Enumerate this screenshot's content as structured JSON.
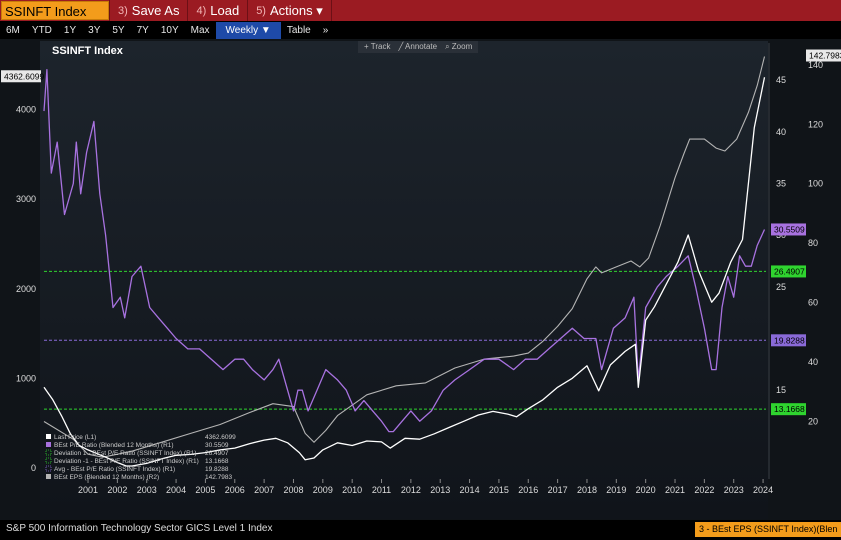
{
  "topbar": {
    "ticker": "SSINFT Index",
    "save_num": "3)",
    "save_label": "Save As",
    "load_num": "4)",
    "load_label": "Load",
    "actions_num": "5)",
    "actions_label": "Actions ▾"
  },
  "ranges": [
    "6M",
    "YTD",
    "1Y",
    "3Y",
    "5Y",
    "7Y",
    "10Y",
    "Max"
  ],
  "weekly_label": "Weekly ▼",
  "table_label": "Table",
  "more_label": "»",
  "tools": {
    "track": "+ Track",
    "annotate": "╱ Annotate",
    "zoom": "⌕ Zoom"
  },
  "status": {
    "left": "S&P 500 Information Technology Sector GICS Level 1 Index",
    "right": "3 - BEst EPS (SSINFT Index)(Blen"
  },
  "chart_data": {
    "type": "line",
    "title": "SSINFT Index",
    "x_ticks": [
      "2001",
      "2002",
      "2003",
      "2004",
      "2005",
      "2006",
      "2007",
      "2008",
      "2009",
      "2010",
      "2011",
      "2012",
      "2013",
      "2014",
      "2015",
      "2016",
      "2017",
      "2018",
      "2019",
      "2020",
      "2021",
      "2022",
      "2023",
      "2024"
    ],
    "x_range": [
      2000.0,
      2024.6
    ],
    "left_axis_ticks": [
      0,
      1000,
      2000,
      3000,
      4000
    ],
    "left_axis_range": [
      -80,
      4700
    ],
    "right_axis_pe_ticks": [
      15,
      20,
      25,
      30,
      35,
      40,
      45
    ],
    "right_axis_pe_range": [
      6.8,
      48.2
    ],
    "right_axis_eps_ticks": [
      20,
      40,
      60,
      80,
      100,
      120,
      140
    ],
    "right_axis_eps_range": [
      2,
      146
    ],
    "colors": {
      "price": "#ffffff",
      "pe": "#a872e0",
      "eps": "#b4b4b4",
      "dev_lines": "#2fd42f",
      "avg_line": "#8a6ad8"
    },
    "reference_lines": [
      {
        "name": "Deviation 1 - BEst P/E Ratio (SSINFT Index) (R1)",
        "value": 26.4907,
        "label": "26.4907"
      },
      {
        "name": "Deviation -1 - BEst P/E Ratio (SSINFT Index) (R1)",
        "value": 13.1668,
        "label": "13.1668"
      },
      {
        "name": "Avg - BEst P/E Ratio (SSINFT Index) (R1)",
        "value": 19.8288,
        "label": "19.8288"
      }
    ],
    "series": [
      {
        "name": "Last Price (L1)",
        "axis": "left",
        "last_label": "4362.6099",
        "x": [
          2000.0,
          2000.3,
          2000.6,
          2000.9,
          2001.2,
          2001.5,
          2001.8,
          2002.1,
          2002.5,
          2002.8,
          2003.0,
          2003.5,
          2004.0,
          2004.5,
          2005.0,
          2005.5,
          2006.0,
          2006.5,
          2007.0,
          2007.5,
          2007.9,
          2008.3,
          2008.7,
          2008.9,
          2009.2,
          2009.5,
          2010.0,
          2010.5,
          2011.0,
          2011.5,
          2011.8,
          2012.3,
          2012.8,
          2013.3,
          2013.8,
          2014.3,
          2014.8,
          2015.3,
          2015.8,
          2016.1,
          2016.5,
          2017.0,
          2017.5,
          2018.0,
          2018.5,
          2018.9,
          2019.3,
          2019.8,
          2020.15,
          2020.25,
          2020.5,
          2020.8,
          2021.2,
          2021.6,
          2021.95,
          2022.3,
          2022.75,
          2023.0,
          2023.4,
          2023.8,
          2024.2,
          2024.55
        ],
        "y": [
          900,
          760,
          580,
          380,
          250,
          200,
          160,
          120,
          60,
          20,
          20,
          50,
          100,
          140,
          150,
          170,
          200,
          220,
          270,
          310,
          330,
          280,
          170,
          90,
          110,
          200,
          280,
          250,
          300,
          290,
          220,
          330,
          320,
          380,
          450,
          520,
          590,
          630,
          600,
          570,
          660,
          760,
          900,
          1000,
          1140,
          860,
          1150,
          1300,
          1380,
          900,
          1650,
          1800,
          2050,
          2300,
          2600,
          2200,
          1850,
          1950,
          2300,
          2550,
          3800,
          4362
        ]
      },
      {
        "name": "BEst P/E Ratio (Blended 12 Months) (R1)",
        "axis": "right_pe",
        "last_label": "30.5509",
        "x": [
          2000.0,
          2000.1,
          2000.25,
          2000.45,
          2000.7,
          2001.0,
          2001.1,
          2001.25,
          2001.45,
          2001.7,
          2001.9,
          2002.1,
          2002.35,
          2002.6,
          2002.75,
          2003.0,
          2003.3,
          2003.6,
          2003.9,
          2004.2,
          2004.5,
          2004.9,
          2005.3,
          2005.7,
          2006.1,
          2006.5,
          2006.8,
          2007.1,
          2007.5,
          2007.8,
          2008.0,
          2008.3,
          2008.5,
          2008.65,
          2008.8,
          2009.0,
          2009.3,
          2009.6,
          2010.0,
          2010.3,
          2010.6,
          2010.9,
          2011.2,
          2011.5,
          2011.75,
          2011.9,
          2012.2,
          2012.5,
          2012.8,
          2013.2,
          2013.6,
          2014.0,
          2014.5,
          2015.0,
          2015.5,
          2016.0,
          2016.4,
          2016.8,
          2017.2,
          2017.6,
          2018.0,
          2018.4,
          2018.8,
          2019.0,
          2019.4,
          2019.8,
          2020.1,
          2020.25,
          2020.5,
          2020.9,
          2021.2,
          2021.6,
          2021.95,
          2022.2,
          2022.5,
          2022.75,
          2022.9,
          2023.1,
          2023.3,
          2023.5,
          2023.7,
          2023.9,
          2024.1,
          2024.3,
          2024.55
        ],
        "y": [
          42,
          46,
          36,
          39,
          32,
          35,
          39,
          34,
          38,
          41,
          34,
          30,
          23,
          24,
          22,
          26,
          27,
          23,
          22,
          21,
          20,
          19,
          19,
          18,
          17,
          18,
          18,
          17,
          16,
          17,
          18,
          15,
          13,
          15,
          15,
          13,
          15,
          17,
          16,
          15,
          13,
          14,
          13,
          12,
          11,
          11,
          12,
          13,
          12,
          13,
          15,
          16,
          17,
          18,
          18,
          17,
          18,
          18,
          19,
          20,
          21,
          20,
          20,
          17,
          21,
          22,
          24,
          16,
          23,
          25,
          26,
          27,
          28,
          25,
          21,
          17,
          17,
          23,
          26,
          24,
          28,
          27,
          27,
          29,
          30.55
        ]
      },
      {
        "name": "BEst EPS (Blended 12 Months) (R2)",
        "axis": "right_eps",
        "last_label": "142.7983",
        "x": [
          2000.0,
          2001.0,
          2001.5,
          2002.0,
          2003.0,
          2004.0,
          2005.0,
          2006.0,
          2007.0,
          2007.8,
          2008.5,
          2008.9,
          2009.2,
          2009.6,
          2010.0,
          2011.0,
          2012.0,
          2013.0,
          2014.0,
          2015.0,
          2016.0,
          2016.5,
          2017.0,
          2017.5,
          2018.0,
          2018.5,
          2018.8,
          2019.0,
          2019.5,
          2020.0,
          2020.3,
          2020.6,
          2021.0,
          2021.5,
          2021.8,
          2022.0,
          2022.5,
          2022.9,
          2023.2,
          2023.6,
          2024.0,
          2024.3,
          2024.55
        ],
        "y": [
          20,
          14,
          9,
          8,
          10,
          13,
          16,
          19,
          23,
          26,
          25,
          16,
          13,
          17,
          22,
          29,
          32,
          33,
          38,
          41,
          42,
          43,
          47,
          52,
          58,
          68,
          72,
          70,
          72,
          74,
          72,
          75,
          86,
          102,
          110,
          115,
          115,
          112,
          111,
          115,
          124,
          133,
          142.8
        ]
      }
    ],
    "legend": [
      {
        "label": "Last Price (L1)",
        "value": "4362.6099",
        "color": "#ffffff",
        "style": "solid"
      },
      {
        "label": "BEst P/E Ratio (Blended 12 Months) (R1)",
        "value": "30.5509",
        "color": "#a872e0",
        "style": "solid"
      },
      {
        "label": "Deviation 1 - BEst P/E Ratio (SSINFT Index) (R1)",
        "value": "26.4907",
        "color": "#2fd42f",
        "style": "dashed"
      },
      {
        "label": "Deviation -1 - BEst P/E Ratio (SSINFT Index) (R1)",
        "value": "13.1668",
        "color": "#2fd42f",
        "style": "dashed"
      },
      {
        "label": "Avg - BEst P/E Ratio (SSINFT Index) (R1)",
        "value": "19.8288",
        "color": "#8a6ad8",
        "style": "dashed"
      },
      {
        "label": "BEst EPS (Blended 12 Months) (R2)",
        "value": "142.7983",
        "color": "#b4b4b4",
        "style": "solid"
      }
    ]
  }
}
